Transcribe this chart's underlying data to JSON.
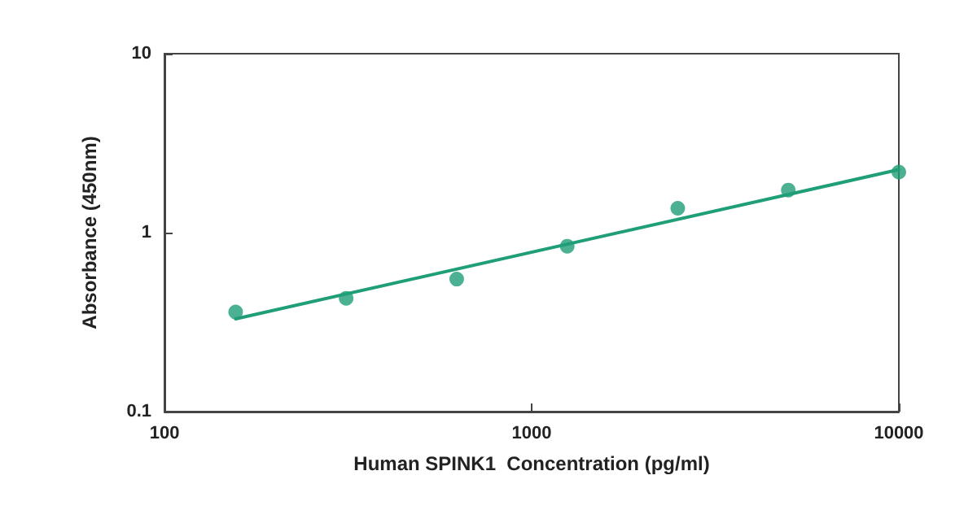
{
  "chart_data": {
    "type": "scatter",
    "xlabel": "Human SPINK1  Concentration (pg/ml)",
    "ylabel": "Absorbance (450nm)",
    "x": [
      156.25,
      312.5,
      625,
      1250,
      2500,
      5000,
      10000
    ],
    "series": [
      {
        "color": "#1f9e78",
        "values": [
          0.36,
          0.43,
          0.55,
          0.84,
          1.37,
          1.73,
          2.18
        ],
        "marker": "circle"
      },
      {
        "type": "line",
        "color": "#1f9e78",
        "x": [
          156.25,
          10000
        ],
        "values": [
          0.33,
          2.25
        ],
        "marker": "none",
        "line_style": "solid"
      }
    ],
    "log": "xy",
    "xlim": [
      100,
      10000
    ],
    "ylim": [
      0.1,
      10
    ],
    "xticks": [
      100,
      1000,
      10000
    ],
    "yticks": [
      0.1,
      1,
      10
    ],
    "grid": false
  }
}
